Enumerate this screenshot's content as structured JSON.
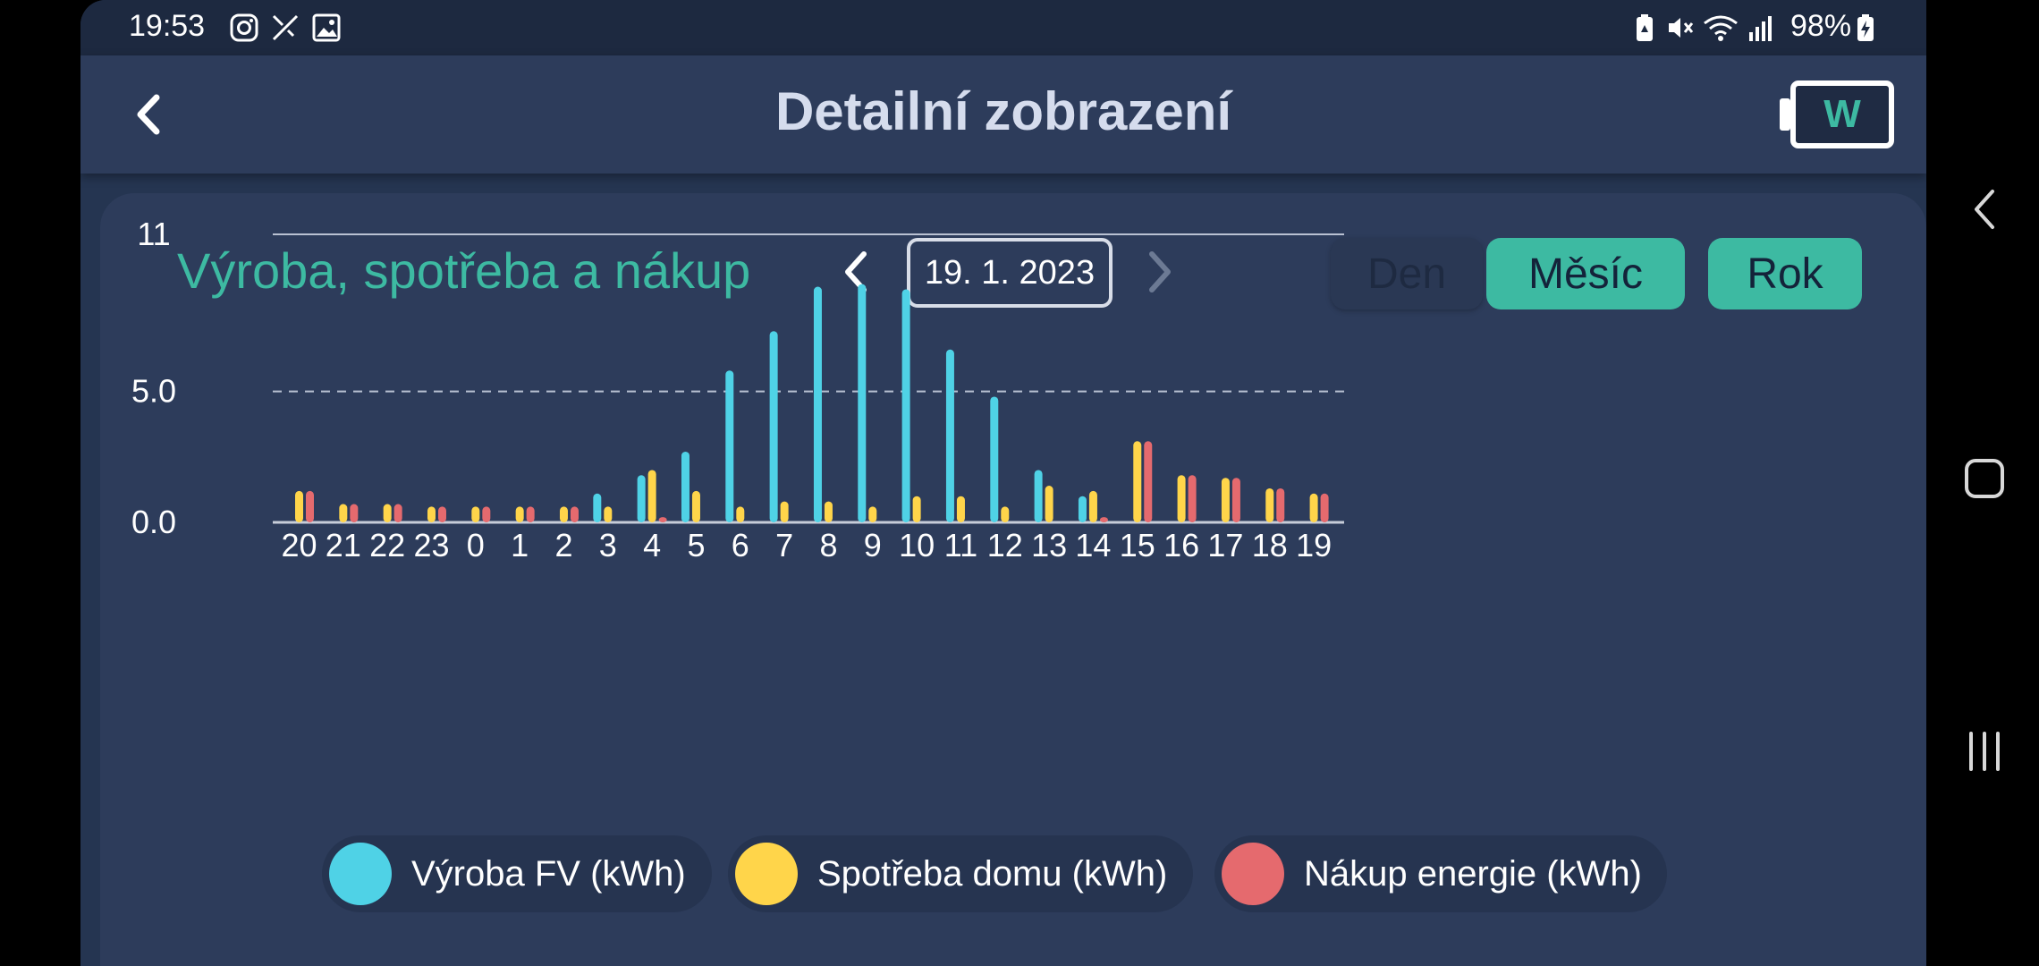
{
  "statusbar": {
    "time": "19:53",
    "battery": "98%",
    "left_icons": [
      "instagram-icon",
      "satellite-icon",
      "gallery-icon"
    ],
    "right_icons": [
      "battery-saver-icon",
      "mute-icon",
      "wifi-icon",
      "signal-icon",
      "battery-charging-icon"
    ]
  },
  "appbar": {
    "title": "Detailní zobrazení",
    "logo_letter": "W"
  },
  "card": {
    "title": "Výroba, spotřeba a nákup",
    "date": "19. 1. 2023",
    "buttons": {
      "day": "Den",
      "month": "Měsíc",
      "year": "Rok"
    }
  },
  "colors": {
    "production": "#4fd2e6",
    "consumption": "#ffd54a",
    "purchase": "#e56a6e",
    "accent": "#3dbaa2"
  },
  "chart_data": {
    "type": "bar",
    "categories": [
      "20",
      "21",
      "22",
      "23",
      "0",
      "1",
      "2",
      "3",
      "4",
      "5",
      "6",
      "7",
      "8",
      "9",
      "10",
      "11",
      "12",
      "13",
      "14",
      "15",
      "16",
      "17",
      "18",
      "19"
    ],
    "yticks": [
      "11",
      "5.0",
      "0.0"
    ],
    "ylim": [
      0,
      11
    ],
    "series": [
      {
        "name": "Výroba FV (kWh)",
        "values": [
          0,
          0,
          0,
          0,
          0,
          0,
          0,
          1.1,
          1.8,
          2.7,
          5.8,
          7.3,
          9.0,
          9.1,
          8.9,
          6.6,
          4.8,
          2.0,
          1.0,
          0,
          0,
          0,
          0,
          0
        ]
      },
      {
        "name": "Spotřeba domu (kWh)",
        "values": [
          1.2,
          0.7,
          0.7,
          0.6,
          0.6,
          0.6,
          0.6,
          0.6,
          2.0,
          1.2,
          0.6,
          0.8,
          0.8,
          0.6,
          1.0,
          1.0,
          0.6,
          1.4,
          1.2,
          3.1,
          1.8,
          1.7,
          1.3,
          1.1
        ]
      },
      {
        "name": "Nákup energie (kWh)",
        "values": [
          1.2,
          0.7,
          0.7,
          0.6,
          0.6,
          0.6,
          0.6,
          0,
          0.2,
          0,
          0,
          0,
          0,
          0,
          0,
          0,
          0,
          0,
          0.2,
          3.1,
          1.8,
          1.7,
          1.3,
          1.1
        ]
      }
    ]
  }
}
